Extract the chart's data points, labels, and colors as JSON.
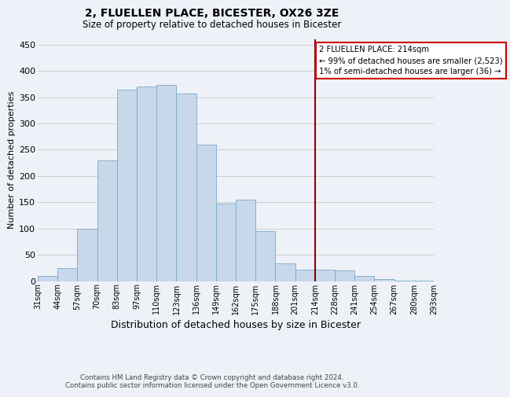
{
  "title": "2, FLUELLEN PLACE, BICESTER, OX26 3ZE",
  "subtitle": "Size of property relative to detached houses in Bicester",
  "xlabel": "Distribution of detached houses by size in Bicester",
  "ylabel": "Number of detached properties",
  "footer_lines": [
    "Contains HM Land Registry data © Crown copyright and database right 2024.",
    "Contains public sector information licensed under the Open Government Licence v3.0."
  ],
  "bin_labels": [
    "31sqm",
    "44sqm",
    "57sqm",
    "70sqm",
    "83sqm",
    "97sqm",
    "110sqm",
    "123sqm",
    "136sqm",
    "149sqm",
    "162sqm",
    "175sqm",
    "188sqm",
    "201sqm",
    "214sqm",
    "228sqm",
    "241sqm",
    "254sqm",
    "267sqm",
    "280sqm",
    "293sqm"
  ],
  "bar_heights": [
    10,
    25,
    100,
    230,
    365,
    370,
    373,
    357,
    260,
    147,
    155,
    95,
    34,
    21,
    21,
    20,
    10,
    3,
    1,
    1
  ],
  "bar_color": "#c8d8eb",
  "bar_edge_color": "#7aaac8",
  "grid_color": "#cccccc",
  "background_color": "#eef2f8",
  "reference_line_color": "#880000",
  "annotation_line1": "2 FLUELLEN PLACE: 214sqm",
  "annotation_line2": "← 99% of detached houses are smaller (2,523)",
  "annotation_line3": "1% of semi-detached houses are larger (36) →",
  "annotation_box_color": "#ffffff",
  "annotation_box_edge": "#cc0000",
  "ylim": [
    0,
    460
  ],
  "yticks": [
    0,
    50,
    100,
    150,
    200,
    250,
    300,
    350,
    400,
    450
  ]
}
